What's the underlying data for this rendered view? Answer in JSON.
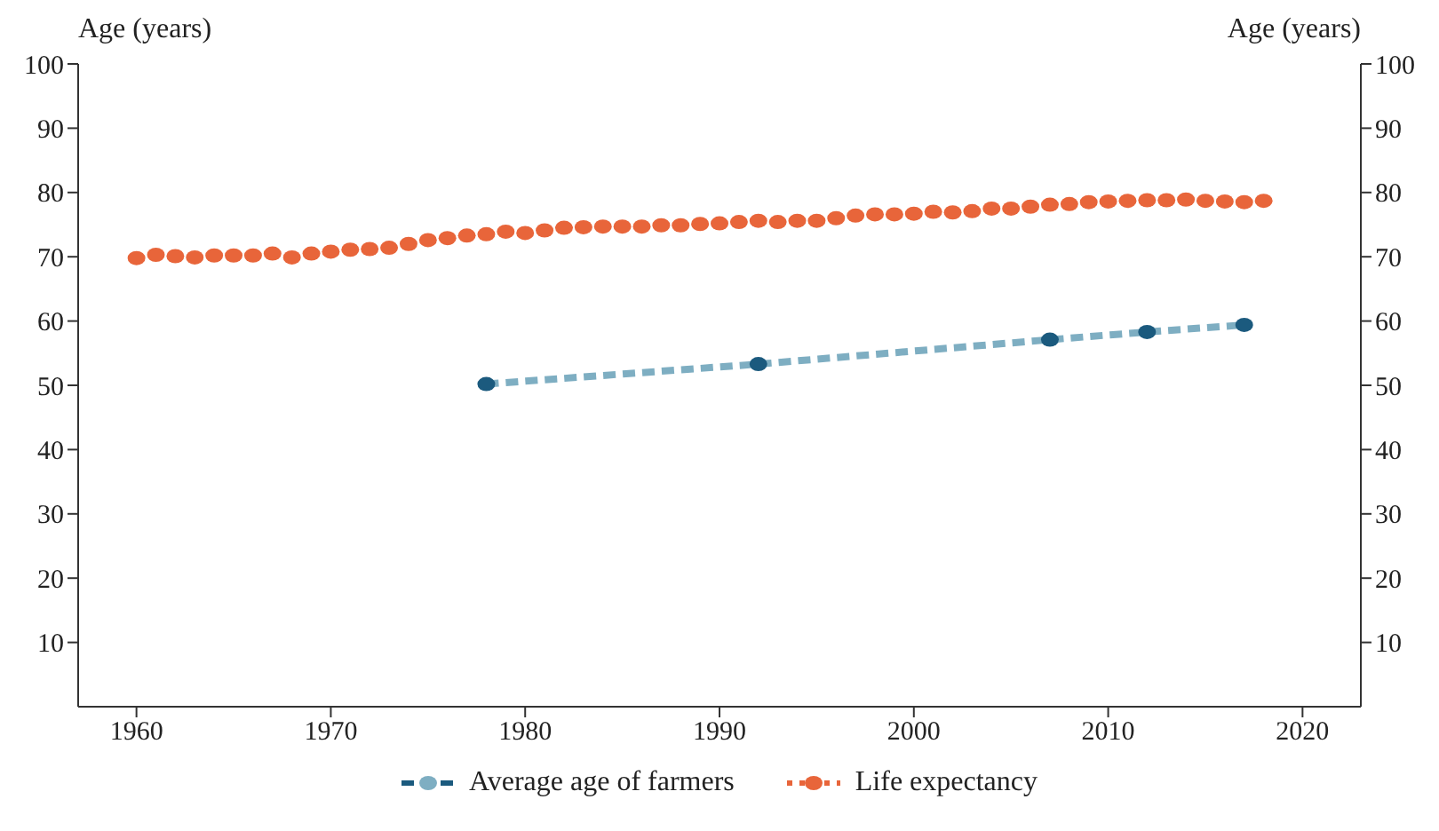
{
  "chart_data": {
    "type": "line",
    "ylabel": "Age (years)",
    "y2label": "Age (years)",
    "xlim": [
      1957,
      2023
    ],
    "xticks": [
      1960,
      1970,
      1980,
      1990,
      2000,
      2010,
      2020
    ],
    "ylim": [
      0,
      100
    ],
    "yticks": [
      10,
      20,
      30,
      40,
      50,
      60,
      70,
      80,
      90,
      100
    ],
    "y2lim": [
      0,
      100
    ],
    "y2ticks": [
      10,
      20,
      30,
      40,
      50,
      60,
      70,
      80,
      90,
      100
    ],
    "grid": false,
    "legend": "bottom",
    "series": [
      {
        "name": "Average age of farmers",
        "color": "#7eaec2",
        "colors": [
          "#1b5a7e",
          "#1b5a7e",
          "#1b5a7e",
          "#1b5a7e",
          "#1b5a7e"
        ],
        "line_style": "dashed",
        "marker": "circle",
        "x": [
          1978,
          1992,
          2007,
          2012,
          2017
        ],
        "values": [
          50.2,
          53.3,
          57.1,
          58.3,
          59.4
        ]
      },
      {
        "name": "Life expectancy",
        "type": "scatter",
        "color": "#e8653a",
        "marker": "circle",
        "x": [
          1960,
          1961,
          1962,
          1963,
          1964,
          1965,
          1966,
          1967,
          1968,
          1969,
          1970,
          1971,
          1972,
          1973,
          1974,
          1975,
          1976,
          1977,
          1978,
          1979,
          1980,
          1981,
          1982,
          1983,
          1984,
          1985,
          1986,
          1987,
          1988,
          1989,
          1990,
          1991,
          1992,
          1993,
          1994,
          1995,
          1996,
          1997,
          1998,
          1999,
          2000,
          2001,
          2002,
          2003,
          2004,
          2005,
          2006,
          2007,
          2008,
          2009,
          2010,
          2011,
          2012,
          2013,
          2014,
          2015,
          2016,
          2017,
          2018
        ],
        "values": [
          69.8,
          70.3,
          70.1,
          69.9,
          70.2,
          70.2,
          70.2,
          70.5,
          69.9,
          70.5,
          70.8,
          71.1,
          71.2,
          71.4,
          72.0,
          72.6,
          72.9,
          73.3,
          73.5,
          73.9,
          73.7,
          74.1,
          74.5,
          74.6,
          74.7,
          74.7,
          74.7,
          74.9,
          74.9,
          75.1,
          75.2,
          75.4,
          75.6,
          75.4,
          75.6,
          75.6,
          76.0,
          76.4,
          76.6,
          76.6,
          76.7,
          77.0,
          76.9,
          77.1,
          77.5,
          77.5,
          77.8,
          78.1,
          78.2,
          78.5,
          78.6,
          78.7,
          78.8,
          78.8,
          78.9,
          78.7,
          78.6,
          78.5,
          78.7
        ]
      }
    ]
  }
}
